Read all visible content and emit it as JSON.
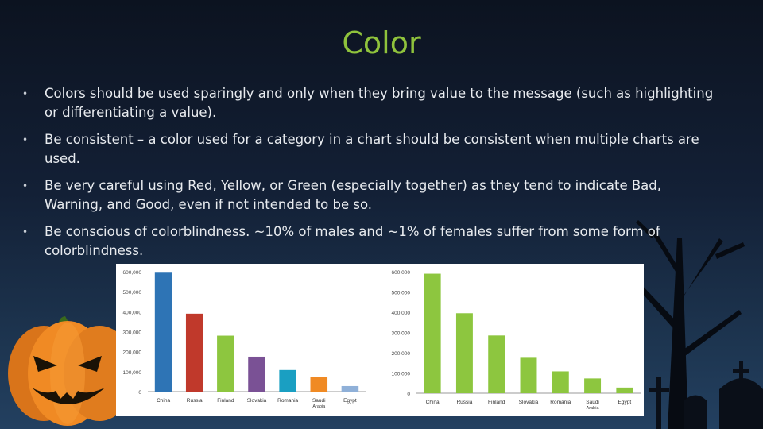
{
  "slide": {
    "title": "Color",
    "bullets": [
      "Colors should be used sparingly and only when they bring value to the message (such as highlighting or differentiating a value).",
      "Be consistent – a color used for a category in a chart should be consistent when multiple charts are used.",
      "Be very careful using Red, Yellow, or Green (especially together) as they tend to indicate Bad, Warning, and Good, even if not intended to be so.",
      "Be conscious of colorblindness. ~10% of males and ~1% of females suffer from some form of colorblindness."
    ],
    "bullet_glyph": "•"
  },
  "decor_icons": [
    "pumpkin-icon",
    "bare-tree-icon",
    "gravestone-icon",
    "cross-icon"
  ],
  "chart_data": [
    {
      "type": "bar",
      "categories": [
        "China",
        "Russia",
        "Finland",
        "Slovakia",
        "Romania",
        "Saudi\nArabia",
        "Egypt"
      ],
      "values": [
        595000,
        390000,
        280000,
        175000,
        108000,
        73000,
        28000
      ],
      "colors": [
        "#2e74b5",
        "#c0392b",
        "#8dc63f",
        "#7a5195",
        "#1a9fc2",
        "#f08a24",
        "#8fb0d8"
      ],
      "yticks": [
        "0",
        "100,000",
        "200,000",
        "300,000",
        "400,000",
        "500,000",
        "600,000"
      ],
      "ylim": [
        0,
        600000
      ],
      "grid": false
    },
    {
      "type": "bar",
      "categories": [
        "China",
        "Russia",
        "Finland",
        "Slovakia",
        "Romania",
        "Saudi\nArabia",
        "Egypt"
      ],
      "values": [
        590000,
        395000,
        285000,
        175000,
        108000,
        73000,
        28000
      ],
      "colors": [
        "#8dc63f",
        "#8dc63f",
        "#8dc63f",
        "#8dc63f",
        "#8dc63f",
        "#8dc63f",
        "#8dc63f"
      ],
      "yticks": [
        "0",
        "100,000",
        "200,000",
        "300,000",
        "400,000",
        "500,000",
        "600,000"
      ],
      "ylim": [
        0,
        600000
      ],
      "grid": false
    }
  ]
}
